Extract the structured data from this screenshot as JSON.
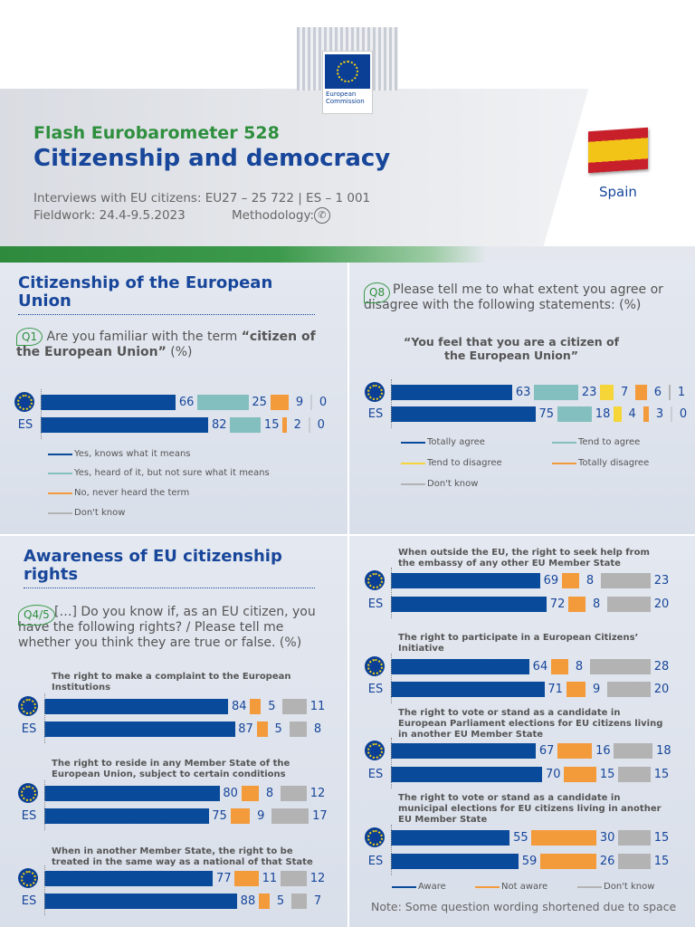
{
  "header": {
    "logo_text": "European Commission",
    "kicker": "Flash Eurobarometer 528",
    "title": "Citizenship and democracy",
    "interviews": "Interviews with EU citizens: EU27 – 25 722 | ES – 1 001",
    "fieldwork": "Fieldwork: 24.4-9.5.2023",
    "methodology": "Methodology:",
    "methodology_icon": "phone-icon",
    "country": "Spain"
  },
  "colors": {
    "aware": "#0a4a9b",
    "teal": "#83bfbf",
    "orange": "#f39a3b",
    "yellow": "#f5d538",
    "gray": "#b3b3b3"
  },
  "sections": {
    "s1": {
      "title": "Citizenship of the European Union",
      "q1_badge": "Q1",
      "q1_text_a": "Are you familiar with the term ",
      "q1_text_b": "“citizen of the European Union”",
      "q1_text_c": " (%)"
    },
    "s2": {
      "q8_badge": "Q8",
      "q8_text": "Please tell me to what extent you agree or disagree with the following statements: (%)",
      "statement": "“You feel that you are a citizen of the European Union”"
    },
    "s3": {
      "title": "Awareness of EU citizenship rights",
      "q_badge": "Q4/5",
      "q_text": "[…] Do you know if, as an EU citizen, you have the following rights? / Please tell me whether you think they are true or false. (%)"
    },
    "note": "Note: Some question wording shortened due to space"
  },
  "chart_data": [
    {
      "type": "bar",
      "stacked": true,
      "orientation": "horizontal",
      "id": "q1",
      "series": [
        "Yes, knows what it means",
        "Yes, heard of it, but not sure what it means",
        "No, never heard the term",
        "Don't know"
      ],
      "series_colors": [
        "#0a4a9b",
        "#83bfbf",
        "#f39a3b",
        "#b3b3b3"
      ],
      "rows": [
        {
          "label": "",
          "icon": "eu-flag-icon",
          "values": [
            66,
            25,
            9,
            0
          ]
        },
        {
          "label": "ES",
          "values": [
            82,
            15,
            2,
            0
          ]
        }
      ]
    },
    {
      "type": "bar",
      "stacked": true,
      "orientation": "horizontal",
      "id": "q8",
      "series": [
        "Totally agree",
        "Tend to agree",
        "Tend to disagree",
        "Totally disagree",
        "Don't know"
      ],
      "series_colors": [
        "#0a4a9b",
        "#83bfbf",
        "#f5d538",
        "#f39a3b",
        "#b3b3b3"
      ],
      "rows": [
        {
          "label": "",
          "icon": "eu-flag-icon",
          "values": [
            63,
            23,
            7,
            6,
            1
          ]
        },
        {
          "label": "ES",
          "values": [
            75,
            18,
            4,
            3,
            0
          ]
        }
      ]
    },
    {
      "type": "bar",
      "stacked": true,
      "orientation": "horizontal",
      "id": "q45",
      "series": [
        "Aware",
        "Not aware",
        "Don't know"
      ],
      "series_colors": [
        "#0a4a9b",
        "#f39a3b",
        "#b3b3b3"
      ],
      "items": [
        {
          "title": "The right to make a complaint to the European Institutions",
          "rows": [
            {
              "label": "",
              "icon": "eu-flag-icon",
              "values": [
                84,
                5,
                11
              ]
            },
            {
              "label": "ES",
              "values": [
                87,
                5,
                8
              ]
            }
          ]
        },
        {
          "title": "The right to reside in any Member State of the European Union, subject to certain conditions",
          "rows": [
            {
              "label": "",
              "icon": "eu-flag-icon",
              "values": [
                80,
                8,
                12
              ]
            },
            {
              "label": "ES",
              "values": [
                75,
                9,
                17
              ]
            }
          ]
        },
        {
          "title": "When in another Member State, the right to be treated in the same way as a national of that State",
          "rows": [
            {
              "label": "",
              "icon": "eu-flag-icon",
              "values": [
                77,
                11,
                12
              ]
            },
            {
              "label": "ES",
              "values": [
                88,
                5,
                7
              ]
            }
          ]
        },
        {
          "title": "When outside the EU, the right to seek help from the embassy of any other EU Member State",
          "rows": [
            {
              "label": "",
              "icon": "eu-flag-icon",
              "values": [
                69,
                8,
                23
              ]
            },
            {
              "label": "ES",
              "values": [
                72,
                8,
                20
              ]
            }
          ]
        },
        {
          "title": "The right to participate in a European Citizens’ Initiative",
          "rows": [
            {
              "label": "",
              "icon": "eu-flag-icon",
              "values": [
                64,
                8,
                28
              ]
            },
            {
              "label": "ES",
              "values": [
                71,
                9,
                20
              ]
            }
          ]
        },
        {
          "title": "The right to vote or stand as a candidate in European Parliament elections for EU citizens living in another EU Member State",
          "rows": [
            {
              "label": "",
              "icon": "eu-flag-icon",
              "values": [
                67,
                16,
                18
              ]
            },
            {
              "label": "ES",
              "values": [
                70,
                15,
                15
              ]
            }
          ]
        },
        {
          "title": "The right to vote or stand as a candidate in municipal elections for EU citizens living in another EU Member State",
          "rows": [
            {
              "label": "",
              "icon": "eu-flag-icon",
              "values": [
                55,
                30,
                15
              ]
            },
            {
              "label": "ES",
              "values": [
                59,
                26,
                15
              ]
            }
          ]
        }
      ]
    }
  ]
}
